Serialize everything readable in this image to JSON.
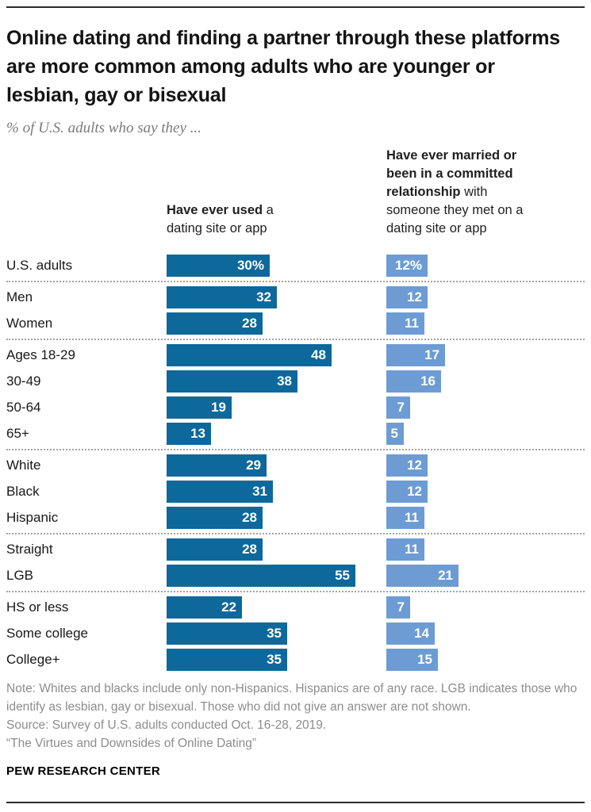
{
  "header": {
    "title": "Online dating and finding a partner through these platforms are more common among adults who are younger or lesbian, gay or bisexual",
    "subtitle": "% of U.S. adults who say they ..."
  },
  "columns": {
    "used": {
      "bold": "Have ever used",
      "rest": " a dating site or app"
    },
    "married": {
      "bold": "Have ever married or been in a committed relationship",
      "rest": " with someone they met on a dating site or app"
    }
  },
  "chart_data": {
    "type": "bar",
    "title": "Online dating and finding a partner through these platforms are more common among adults who are younger or lesbian, gay or bisexual",
    "subtitle": "% of U.S. adults who say they ...",
    "unit": "%",
    "xlim": [
      0,
      60
    ],
    "orientation": "horizontal",
    "value_labels": "inside-end",
    "series": [
      {
        "name": "Have ever used a dating site or app",
        "color": "#0d689b"
      },
      {
        "name": "Have ever married or been in a committed relationship with someone they met on a dating site or app",
        "color": "#6d9cd4"
      }
    ],
    "groups": [
      {
        "rows": [
          {
            "label": "U.S. adults",
            "used": 30,
            "used_label": "30%",
            "married": 12,
            "married_label": "12%"
          }
        ]
      },
      {
        "rows": [
          {
            "label": "Men",
            "used": 32,
            "used_label": "32",
            "married": 12,
            "married_label": "12"
          },
          {
            "label": "Women",
            "used": 28,
            "used_label": "28",
            "married": 11,
            "married_label": "11"
          }
        ]
      },
      {
        "rows": [
          {
            "label": "Ages 18-29",
            "used": 48,
            "used_label": "48",
            "married": 17,
            "married_label": "17"
          },
          {
            "label": "30-49",
            "used": 38,
            "used_label": "38",
            "married": 16,
            "married_label": "16"
          },
          {
            "label": "50-64",
            "used": 19,
            "used_label": "19",
            "married": 7,
            "married_label": "7"
          },
          {
            "label": "65+",
            "used": 13,
            "used_label": "13",
            "married": 5,
            "married_label": "5"
          }
        ]
      },
      {
        "rows": [
          {
            "label": "White",
            "used": 29,
            "used_label": "29",
            "married": 12,
            "married_label": "12"
          },
          {
            "label": "Black",
            "used": 31,
            "used_label": "31",
            "married": 12,
            "married_label": "12"
          },
          {
            "label": "Hispanic",
            "used": 28,
            "used_label": "28",
            "married": 11,
            "married_label": "11"
          }
        ]
      },
      {
        "rows": [
          {
            "label": "Straight",
            "used": 28,
            "used_label": "28",
            "married": 11,
            "married_label": "11"
          },
          {
            "label": "LGB",
            "used": 55,
            "used_label": "55",
            "married": 21,
            "married_label": "21"
          }
        ]
      },
      {
        "rows": [
          {
            "label": "HS or less",
            "used": 22,
            "used_label": "22",
            "married": 7,
            "married_label": "7"
          },
          {
            "label": "Some college",
            "used": 35,
            "used_label": "35",
            "married": 14,
            "married_label": "14"
          },
          {
            "label": "College+",
            "used": 35,
            "used_label": "35",
            "married": 15,
            "married_label": "15"
          }
        ]
      }
    ]
  },
  "footer": {
    "note": "Note: Whites and blacks include only non-Hispanics. Hispanics are of any race. LGB indicates those who identify as lesbian, gay or bisexual. Those who did not give an answer are not shown.",
    "source": "Source: Survey of U.S. adults conducted Oct. 16-28, 2019.",
    "quote": "“The Virtues and Downsides of Online Dating”",
    "brand": "PEW RESEARCH CENTER"
  }
}
